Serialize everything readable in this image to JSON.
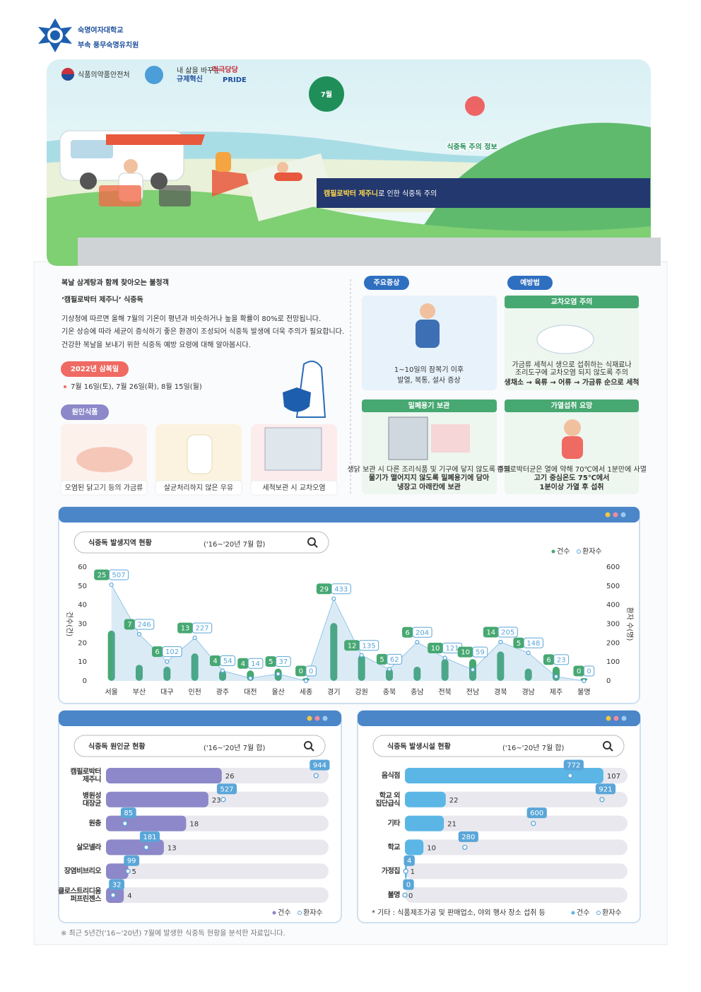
{
  "header": {
    "school": "숙명여자대학교",
    "sub": "부속 풍무숙명유치원"
  },
  "banner": {
    "logos": [
      "식품의약품안전처",
      "내 삶을 바꾸는",
      "규제혁신",
      "적극당당",
      "PRIDE"
    ],
    "month": "7월",
    "title": "식중독 주의 정보",
    "subtitle_em": "캠필로박터 제주니",
    "subtitle_rest": "로 인한 식중독 주의"
  },
  "intro": {
    "heading": [
      "복날 삼계탕과 함께 찾아오는 불청객",
      "‘캠필로박터 제주니’ 식중독"
    ],
    "paragraph": [
      "기상청에 따르면 올해 7월의 기온이 평년과 비슷하거나 높을 확률이 80%로 전망됩니다.",
      "기온 상승에 따라 세균이 증식하기 좋은 환경이 조성되어 식중독 발생에 더욱 주의가 필요합니다.",
      "건강한 복날을 보내기 위한 식중독 예방 요령에 대해 알아봅시다."
    ],
    "dates_label": "2022년 삼복일",
    "dates": "7월 16일(토), 7월 26일(화), 8월 15일(월)",
    "foods_label": "원인식품",
    "foods": [
      "오염된 닭고기 등의 가금류",
      "살균처리하지 않은 우유",
      "세척보관 시 교차오염"
    ]
  },
  "symptoms": {
    "label": "주요증상",
    "lines": [
      "1~10일의 잠복기 이후",
      "발열, 복통, 설사 증상"
    ]
  },
  "prevention": {
    "label": "예방법",
    "cards": [
      {
        "title": "교차오염 주의",
        "lines": [
          "가금류 세척시 생으로 섭취하는 식재료나",
          "조리도구에 교차오염 되지 않도록 주의",
          "생채소 → 육류 → 어류 → 가금류 순으로 세척"
        ]
      },
      {
        "title": "밀폐용기 보관",
        "lines": [
          "생닭 보관 시 다른 조리식품 및 기구에 닿지 않도록 주의",
          "물기가 떨어지지 않도록 밀폐용기에 담아",
          "냉장고 아래칸에 보관"
        ]
      },
      {
        "title": "가열섭취 요망",
        "lines": [
          "캠필로박터균은 열에 약해 70℃에서 1분만에 사멸",
          "고기 중심온도 75℃에서",
          "1분이상 가열 후 섭취"
        ]
      }
    ]
  },
  "chart_data": [
    {
      "type": "combo",
      "title": "식중독 발생지역 현황",
      "subtitle": "('16~'20년 7월 합)",
      "ylabel": "건수(건)",
      "y2label": "환자 수(명)",
      "categories": [
        "서울",
        "부산",
        "대구",
        "인천",
        "광주",
        "대전",
        "울산",
        "세종",
        "경기",
        "강원",
        "충북",
        "충남",
        "전북",
        "전남",
        "경북",
        "경남",
        "제주",
        "불명"
      ],
      "series": [
        {
          "name": "건수",
          "color": "#47a872",
          "values": [
            25,
            7,
            6,
            13,
            4,
            4,
            5,
            0,
            29,
            12,
            5,
            6,
            10,
            10,
            14,
            5,
            6,
            0
          ]
        },
        {
          "name": "환자수",
          "color": "#5aa6d8",
          "axis": "y2",
          "values": [
            507,
            246,
            102,
            227,
            54,
            14,
            37,
            0,
            433,
            135,
            62,
            204,
            121,
            59,
            205,
            148,
            23,
            0
          ]
        }
      ],
      "ylim": [
        0,
        60
      ],
      "yticks": [
        0,
        10,
        20,
        30,
        40,
        50,
        60
      ],
      "y2lim": [
        0,
        600
      ],
      "y2ticks": [
        0,
        100,
        200,
        300,
        400,
        500,
        600
      ],
      "legend": "top-right"
    },
    {
      "type": "hbar",
      "title": "식중독 원인균 현황",
      "subtitle": "('16~'20년 7월 합)",
      "categories": [
        [
          "캠필로박터",
          "제주니"
        ],
        [
          "병원성",
          "대장균"
        ],
        [
          "원충"
        ],
        [
          "살모넬라"
        ],
        [
          "장염비브리오"
        ],
        [
          "클로스트리디움",
          "퍼프린젠스"
        ]
      ],
      "series": [
        {
          "name": "건수",
          "color": "#8c88c9",
          "values": [
            26,
            23,
            18,
            13,
            5,
            4
          ]
        },
        {
          "name": "환자수",
          "color": "#5aa6d8",
          "axis": "x2",
          "values": [
            944,
            527,
            85,
            181,
            99,
            32
          ]
        }
      ],
      "xlim": [
        0,
        50
      ],
      "x2lim": [
        0,
        1000
      ],
      "legend": "bottom-right"
    },
    {
      "type": "hbar",
      "title": "식중독 발생시설 현황",
      "subtitle": "('16~'20년 7월 합)",
      "note": "* 기타 : 식품제조가공 및 판매업소, 야외 행사 장소 섭취 등",
      "categories": [
        [
          "음식점"
        ],
        [
          "학교 외",
          "집단급식"
        ],
        [
          "기타"
        ],
        [
          "학교"
        ],
        [
          "가정집"
        ],
        [
          "불명"
        ]
      ],
      "series": [
        {
          "name": "건수",
          "color": "#5bb6e6",
          "values": [
            107,
            22,
            21,
            10,
            1,
            0
          ]
        },
        {
          "name": "환자수",
          "color": "#5aa6d8",
          "axis": "x2",
          "values": [
            772,
            921,
            600,
            280,
            4,
            0
          ]
        }
      ],
      "xlim": [
        0,
        120
      ],
      "x2lim": [
        0,
        1040
      ],
      "legend": "bottom-right"
    }
  ],
  "footnote": "※ 최근 5년간('16~'20년) 7월에 발생한 식중독 현황을 분석한 자료입니다."
}
